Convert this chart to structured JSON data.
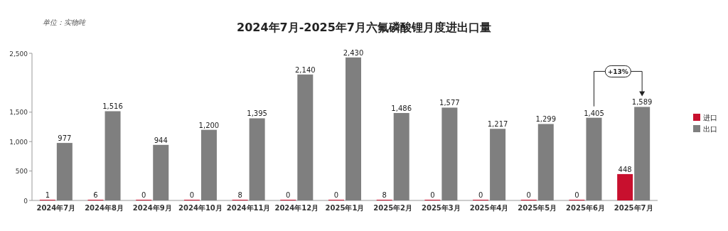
{
  "chart_data": {
    "type": "bar",
    "title": "2024年7月-2025年7月六氟磷酸锂月度进出口量",
    "subtitle": "单位：实物吨",
    "categories": [
      "2024年7月",
      "2024年8月",
      "2024年9月",
      "2024年10月",
      "2024年11月",
      "2024年12月",
      "2025年1月",
      "2025年2月",
      "2025年3月",
      "2025年4月",
      "2025年5月",
      "2025年6月",
      "2025年7月"
    ],
    "series": [
      {
        "name": "进口",
        "color": "#c8102e",
        "values": [
          1,
          6,
          0,
          0,
          8,
          0,
          0,
          8,
          0,
          0,
          0,
          0,
          448
        ],
        "value_labels": [
          "1",
          "6",
          "0",
          "0",
          "8",
          "0",
          "0",
          "8",
          "0",
          "0",
          "0",
          "0",
          "448"
        ]
      },
      {
        "name": "出口",
        "color": "#7f7f7f",
        "values": [
          977,
          1516,
          944,
          1200,
          1395,
          2140,
          2430,
          1486,
          1577,
          1217,
          1299,
          1405,
          1589
        ],
        "value_labels": [
          "977",
          "1,516",
          "944",
          "1,200",
          "1,395",
          "2,140",
          "2,430",
          "1,486",
          "1,577",
          "1,217",
          "1,299",
          "1,405",
          "1,589"
        ]
      }
    ],
    "ylim": [
      0,
      2500
    ],
    "yticks": [
      0,
      {
        "value": 500,
        "label": "500"
      },
      {
        "value": 1000,
        "label": "1,000"
      },
      {
        "value": 1500,
        "label": "1,500"
      },
      {
        "value": 2500,
        "label": "2,500"
      }
    ],
    "legend": "right",
    "grid": false,
    "annotations": [
      "+13%"
    ]
  }
}
